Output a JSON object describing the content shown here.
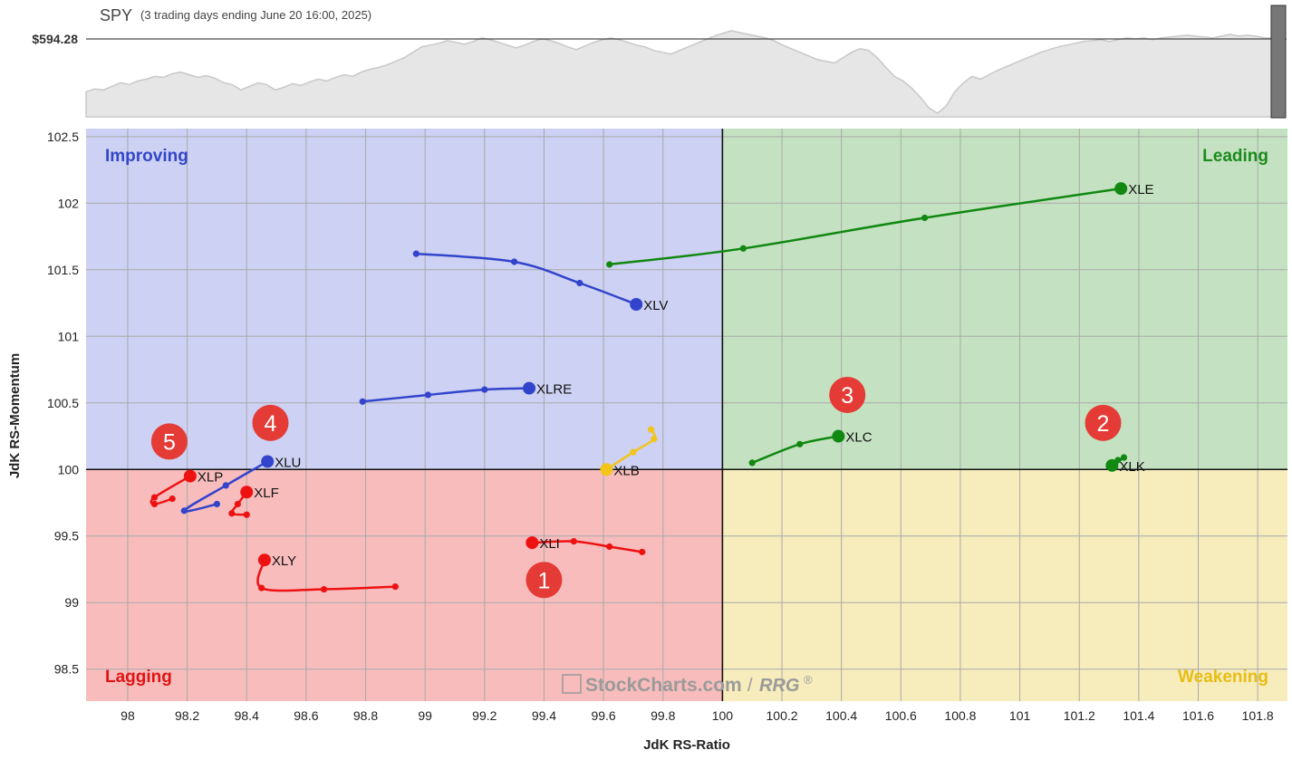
{
  "header": {
    "symbol": "SPY",
    "period": "(3 trading days ending June 20 16:00, 2025)",
    "price": "$594.28"
  },
  "chart_data": {
    "type": "scatter",
    "subtype": "relative-rotation-graph",
    "xlabel": "JdK RS-Ratio",
    "ylabel": "JdK RS-Momentum",
    "xlim": [
      97.86,
      101.9
    ],
    "ylim": [
      98.26,
      102.56
    ],
    "x_ticks": [
      "98",
      "98.2",
      "98.4",
      "98.6",
      "98.8",
      "99",
      "99.2",
      "99.4",
      "99.6",
      "99.8",
      "100",
      "100.2",
      "100.4",
      "100.6",
      "100.8",
      "101",
      "101.2",
      "101.4",
      "101.6",
      "101.8"
    ],
    "y_ticks": [
      "98.5",
      "99",
      "99.5",
      "100",
      "100.5",
      "101",
      "101.5",
      "102",
      "102.5"
    ],
    "grid": true,
    "quadrants": [
      {
        "name": "Improving",
        "color": "#cdd1f3",
        "label_color": "#3346c8",
        "position": "top-left"
      },
      {
        "name": "Leading",
        "color": "#c4e2c1",
        "label_color": "#1d8a1d",
        "position": "top-right"
      },
      {
        "name": "Lagging",
        "color": "#f8bcbc",
        "label_color": "#e01414",
        "position": "bottom-left"
      },
      {
        "name": "Weakening",
        "color": "#f7ecbc",
        "label_color": "#e8bd14",
        "position": "bottom-right"
      }
    ],
    "series": [
      {
        "name": "XLE",
        "color": "#118811",
        "points": [
          [
            99.62,
            101.54
          ],
          [
            100.07,
            101.66
          ],
          [
            100.68,
            101.89
          ],
          [
            101.34,
            102.11
          ]
        ]
      },
      {
        "name": "XLV",
        "color": "#3344cc",
        "points": [
          [
            98.97,
            101.62
          ],
          [
            99.3,
            101.56
          ],
          [
            99.52,
            101.4
          ],
          [
            99.71,
            101.24
          ]
        ]
      },
      {
        "name": "XLRE",
        "color": "#3344cc",
        "points": [
          [
            98.79,
            100.51
          ],
          [
            99.01,
            100.56
          ],
          [
            99.2,
            100.6
          ],
          [
            99.35,
            100.61
          ]
        ]
      },
      {
        "name": "XLB",
        "color": "#f2c51a",
        "points": [
          [
            99.76,
            100.3
          ],
          [
            99.77,
            100.23
          ],
          [
            99.7,
            100.13
          ],
          [
            99.61,
            100.0
          ]
        ]
      },
      {
        "name": "XLC",
        "color": "#118811",
        "points": [
          [
            100.1,
            100.05
          ],
          [
            100.26,
            100.19
          ],
          [
            100.39,
            100.25
          ]
        ]
      },
      {
        "name": "XLK",
        "color": "#118811",
        "points": [
          [
            101.33,
            100.07
          ],
          [
            101.35,
            100.09
          ],
          [
            101.31,
            100.03
          ]
        ]
      },
      {
        "name": "XLU",
        "color": "#3344cc",
        "points": [
          [
            98.3,
            99.74
          ],
          [
            98.19,
            99.69
          ],
          [
            98.33,
            99.88
          ],
          [
            98.47,
            100.06
          ]
        ]
      },
      {
        "name": "XLP",
        "color": "#ee1111",
        "points": [
          [
            98.15,
            99.78
          ],
          [
            98.09,
            99.74
          ],
          [
            98.09,
            99.79
          ],
          [
            98.21,
            99.95
          ]
        ]
      },
      {
        "name": "XLF",
        "color": "#ee1111",
        "points": [
          [
            98.4,
            99.66
          ],
          [
            98.35,
            99.67
          ],
          [
            98.37,
            99.74
          ],
          [
            98.4,
            99.83
          ]
        ]
      },
      {
        "name": "XLY",
        "color": "#ee1111",
        "points": [
          [
            98.9,
            99.12
          ],
          [
            98.66,
            99.1
          ],
          [
            98.45,
            99.11
          ],
          [
            98.46,
            99.32
          ]
        ]
      },
      {
        "name": "XLI",
        "color": "#ee1111",
        "points": [
          [
            99.73,
            99.38
          ],
          [
            99.62,
            99.42
          ],
          [
            99.5,
            99.46
          ],
          [
            99.36,
            99.45
          ]
        ]
      }
    ],
    "callouts": [
      {
        "label": "1",
        "x": 99.4,
        "y": 99.17
      },
      {
        "label": "2",
        "x": 101.28,
        "y": 100.35
      },
      {
        "label": "3",
        "x": 100.42,
        "y": 100.56
      },
      {
        "label": "4",
        "x": 98.48,
        "y": 100.35
      },
      {
        "label": "5",
        "x": 98.14,
        "y": 100.21
      }
    ],
    "watermark": {
      "brand": "StockCharts.com",
      "sep": "/",
      "suffix": "RRG",
      "mark": "®"
    },
    "spy_sparkline": [
      0.28,
      0.31,
      0.3,
      0.34,
      0.38,
      0.36,
      0.4,
      0.42,
      0.45,
      0.44,
      0.48,
      0.5,
      0.47,
      0.44,
      0.46,
      0.43,
      0.38,
      0.36,
      0.3,
      0.34,
      0.38,
      0.36,
      0.3,
      0.33,
      0.37,
      0.35,
      0.39,
      0.42,
      0.4,
      0.44,
      0.47,
      0.45,
      0.5,
      0.53,
      0.55,
      0.58,
      0.62,
      0.66,
      0.72,
      0.78,
      0.8,
      0.82,
      0.85,
      0.83,
      0.81,
      0.84,
      0.88,
      0.86,
      0.83,
      0.8,
      0.77,
      0.8,
      0.84,
      0.87,
      0.85,
      0.82,
      0.78,
      0.75,
      0.79,
      0.83,
      0.86,
      0.88,
      0.86,
      0.83,
      0.8,
      0.78,
      0.74,
      0.72,
      0.7,
      0.74,
      0.78,
      0.82,
      0.86,
      0.9,
      0.93,
      0.96,
      0.94,
      0.92,
      0.9,
      0.88,
      0.85,
      0.8,
      0.76,
      0.72,
      0.68,
      0.64,
      0.62,
      0.6,
      0.66,
      0.72,
      0.76,
      0.74,
      0.66,
      0.55,
      0.45,
      0.4,
      0.32,
      0.22,
      0.1,
      0.04,
      0.12,
      0.28,
      0.38,
      0.45,
      0.42,
      0.47,
      0.52,
      0.56,
      0.6,
      0.64,
      0.68,
      0.72,
      0.75,
      0.78,
      0.8,
      0.82,
      0.84,
      0.85,
      0.86,
      0.84,
      0.86,
      0.88,
      0.87,
      0.88,
      0.86,
      0.88,
      0.89,
      0.9,
      0.91,
      0.9,
      0.89,
      0.88,
      0.9,
      0.92,
      0.9,
      0.91,
      0.9,
      0.88,
      0.88
    ]
  }
}
